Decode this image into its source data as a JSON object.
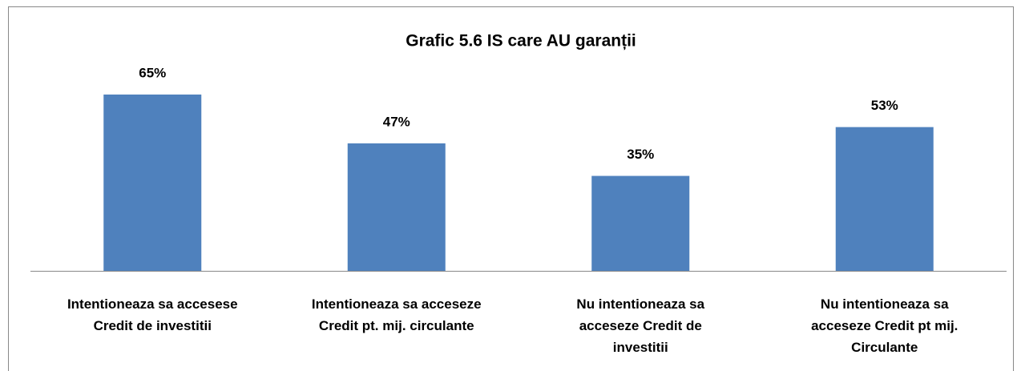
{
  "chart_data": {
    "type": "bar",
    "title": "Grafic 5.6 IS care AU garanții",
    "categories": [
      "Intentioneaza sa accesese\nCredit de investitii",
      "Intentioneaza sa acceseze\nCredit pt. mij. circulante",
      "Nu intentioneaza sa\nacceseze Credit de\ninvestitii",
      "Nu intentioneaza sa\nacceseze Credit pt mij.\nCirculante"
    ],
    "values": [
      65,
      47,
      35,
      53
    ],
    "value_labels": [
      "65%",
      "47%",
      "35%",
      "53%"
    ],
    "color": "#4f81bd"
  }
}
